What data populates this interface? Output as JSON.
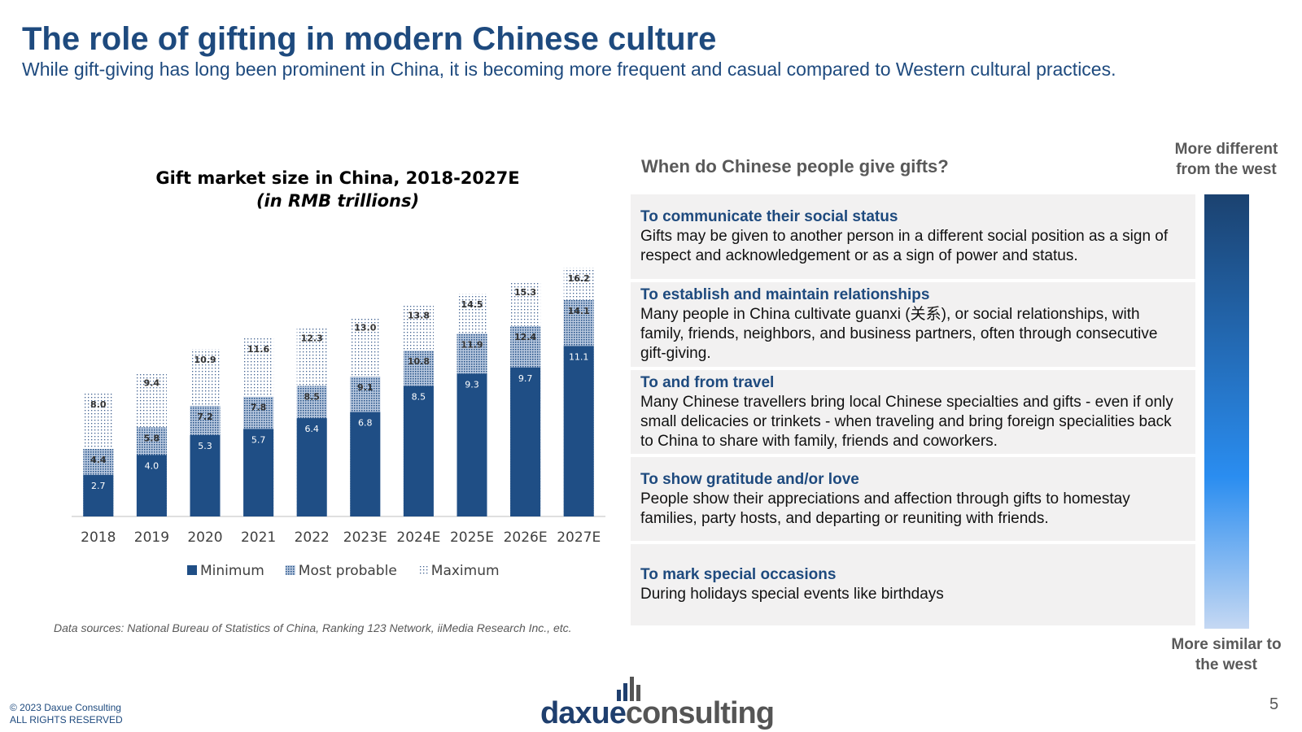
{
  "header": {
    "title": "The role of gifting in modern Chinese culture",
    "subtitle": "While gift-giving has long been prominent in China, it is becoming more frequent and casual compared to Western cultural practices."
  },
  "chart_data": {
    "type": "bar",
    "title": "Gift market size in China, 2018-2027E",
    "subtitle": "(in RMB trillions)",
    "categories": [
      "2018",
      "2019",
      "2020",
      "2021",
      "2022",
      "2023E",
      "2024E",
      "2025E",
      "2026E",
      "2027E"
    ],
    "series": [
      {
        "name": "Minimum",
        "color": "#1f4e85",
        "pattern": "solid",
        "values": [
          2.7,
          4.0,
          5.3,
          5.7,
          6.4,
          6.8,
          8.5,
          9.3,
          9.7,
          11.1
        ],
        "value_labels": [
          "2.7",
          "4.0",
          "5.3",
          "5.7",
          "6.4",
          "6.8",
          "8.5",
          "9.3",
          "9.7",
          "11.1"
        ]
      },
      {
        "name": "Most probable",
        "color": "#1f4e85",
        "pattern": "dense",
        "values": [
          4.4,
          5.8,
          7.2,
          7.8,
          8.5,
          9.1,
          10.8,
          11.9,
          12.4,
          14.1
        ],
        "value_labels": [
          "4.4",
          "5.8",
          "7.2",
          "7.8",
          "8.5",
          "9.1",
          "10.8",
          "11.9",
          "12.4",
          "14.1"
        ]
      },
      {
        "name": "Maximum",
        "color": "#1f4e85",
        "pattern": "sparse",
        "values": [
          8.0,
          9.4,
          10.9,
          11.6,
          12.3,
          13.0,
          13.8,
          14.5,
          15.3,
          16.2
        ],
        "value_labels": [
          "8.0",
          "9.4",
          "10.9",
          "11.6",
          "12.3",
          "13.0",
          "13.8",
          "14.5",
          "15.3",
          "16.2"
        ]
      }
    ],
    "ylim": [
      0,
      17
    ],
    "legend": "bottom"
  },
  "source": "Data sources: National Bureau of Statistics of China, Ranking 123 Network, iiMedia Research Inc., etc.",
  "panel": {
    "heading": "When do Chinese people give gifts?",
    "scale_top": "More different from the west",
    "scale_bottom": "More similar to the west",
    "items": [
      {
        "title": "To communicate their social status",
        "text": "Gifts may be given to another person in a different social position as a sign of respect and acknowledgement or as a sign of power and status."
      },
      {
        "title": "To establish and maintain relationships",
        "text": "Many people in China cultivate guanxi (关系), or social relationships, with family, friends, neighbors, and business partners, often through consecutive gift-giving."
      },
      {
        "title": "To and from travel",
        "text": "Many Chinese travellers bring local Chinese specialties and gifts - even if only small delicacies or trinkets - when traveling and bring foreign specialities back to China to share with family, friends and coworkers."
      },
      {
        "title": "To show gratitude and/or love",
        "text": "People show their appreciations and affection through gifts to homestay families, party hosts, and departing or reuniting with friends."
      },
      {
        "title": "To mark special occasions",
        "text": "During holidays special events like birthdays"
      }
    ]
  },
  "footer": {
    "copyright": [
      "© 2023 Daxue Consulting",
      "ALL RIGHTS RESERVED"
    ],
    "logo": [
      "daxue",
      "consulting"
    ],
    "page": 5
  }
}
